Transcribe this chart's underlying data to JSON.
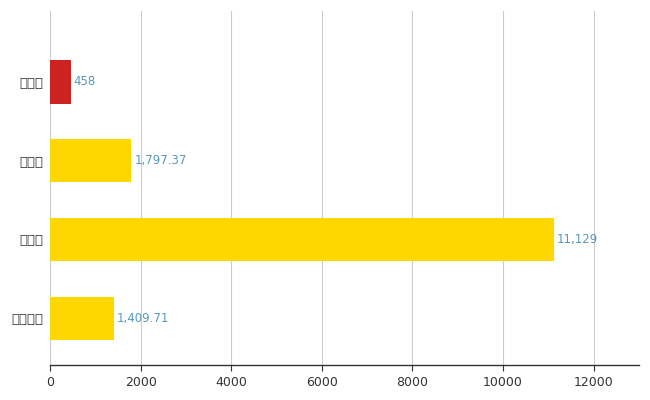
{
  "categories": [
    "能登町",
    "県平均",
    "県最大",
    "全国平均"
  ],
  "values": [
    458,
    1797.37,
    11129,
    1409.71
  ],
  "bar_colors": [
    "#CC2222",
    "#FFD700",
    "#FFD700",
    "#FFD700"
  ],
  "value_labels": [
    "458",
    "1,797.37",
    "11,129",
    "1,409.71"
  ],
  "xlim": [
    0,
    13000
  ],
  "xticks": [
    0,
    2000,
    4000,
    6000,
    8000,
    10000,
    12000
  ],
  "grid_color": "#cccccc",
  "background_color": "#ffffff",
  "label_color": "#5599bb",
  "label_fontsize": 8.5,
  "ytick_fontsize": 9.5,
  "xtick_fontsize": 9,
  "bar_height": 0.55,
  "tick_label_color": "#5599bb"
}
